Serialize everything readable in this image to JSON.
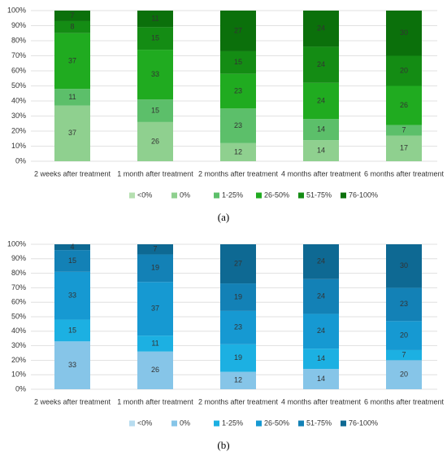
{
  "chart_data": [
    {
      "type": "stacked-bar",
      "caption": "(a)",
      "categories": [
        "2 weeks after treatment",
        "1 month after treatment",
        "2 months after treatment",
        "4 months after treatment",
        "6 months after treatment"
      ],
      "series": [
        {
          "name": "<0%",
          "color": "#b5dfb0",
          "values": [
            0,
            0,
            0,
            0,
            0
          ]
        },
        {
          "name": "0%",
          "color": "#8fd08f",
          "values": [
            37,
            26,
            12,
            14,
            17
          ]
        },
        {
          "name": "1-25%",
          "color": "#5cbf6a",
          "values": [
            11,
            15,
            23,
            14,
            7
          ]
        },
        {
          "name": "26-50%",
          "color": "#20ab20",
          "values": [
            37,
            33,
            23,
            24,
            26
          ]
        },
        {
          "name": "51-75%",
          "color": "#148c14",
          "values": [
            8,
            15,
            15,
            24,
            20
          ]
        },
        {
          "name": "76-100%",
          "color": "#0b700b",
          "values": [
            7,
            11,
            27,
            24,
            30
          ]
        }
      ],
      "ylim": [
        0,
        100
      ],
      "yticks": [
        {
          "value": 0,
          "label": "0%"
        },
        {
          "value": 10,
          "label": "10%"
        },
        {
          "value": 20,
          "label": "20%"
        },
        {
          "value": 30,
          "label": "30%"
        },
        {
          "value": 40,
          "label": "40%"
        },
        {
          "value": 50,
          "label": "50%"
        },
        {
          "value": 60,
          "label": "60%"
        },
        {
          "value": 70,
          "label": "70%"
        },
        {
          "value": 80,
          "label": "80%"
        },
        {
          "value": 90,
          "label": "90%"
        },
        {
          "value": 100,
          "label": "100%"
        }
      ],
      "grid": true
    },
    {
      "type": "stacked-bar",
      "caption": "(b)",
      "categories": [
        "2 weeks after treatment",
        "1 month after treatment",
        "2 months after treatment",
        "4 months after treatment",
        "6 months after treatment"
      ],
      "series": [
        {
          "name": "<0%",
          "color": "#b8dcef",
          "values": [
            0,
            0,
            0,
            0,
            0
          ]
        },
        {
          "name": "0%",
          "color": "#86c5e8",
          "values": [
            33,
            26,
            12,
            14,
            20
          ]
        },
        {
          "name": "1-25%",
          "color": "#1cb0e2",
          "values": [
            15,
            11,
            19,
            14,
            7
          ]
        },
        {
          "name": "26-50%",
          "color": "#1699d2",
          "values": [
            33,
            37,
            23,
            24,
            20
          ]
        },
        {
          "name": "51-75%",
          "color": "#1381b6",
          "values": [
            15,
            19,
            19,
            24,
            23
          ]
        },
        {
          "name": "76-100%",
          "color": "#0e6993",
          "values": [
            4,
            7,
            27,
            24,
            30
          ]
        }
      ],
      "ylim": [
        0,
        100
      ],
      "yticks": [
        {
          "value": 0,
          "label": "0%"
        },
        {
          "value": 10,
          "label": "10%"
        },
        {
          "value": 20,
          "label": "20%"
        },
        {
          "value": 30,
          "label": "30%"
        },
        {
          "value": 40,
          "label": "40%"
        },
        {
          "value": 50,
          "label": "50%"
        },
        {
          "value": 60,
          "label": "60%"
        },
        {
          "value": 70,
          "label": "70%"
        },
        {
          "value": 80,
          "label": "80%"
        },
        {
          "value": 90,
          "label": "90%"
        },
        {
          "value": 100,
          "label": "100%"
        }
      ],
      "grid": true
    }
  ]
}
